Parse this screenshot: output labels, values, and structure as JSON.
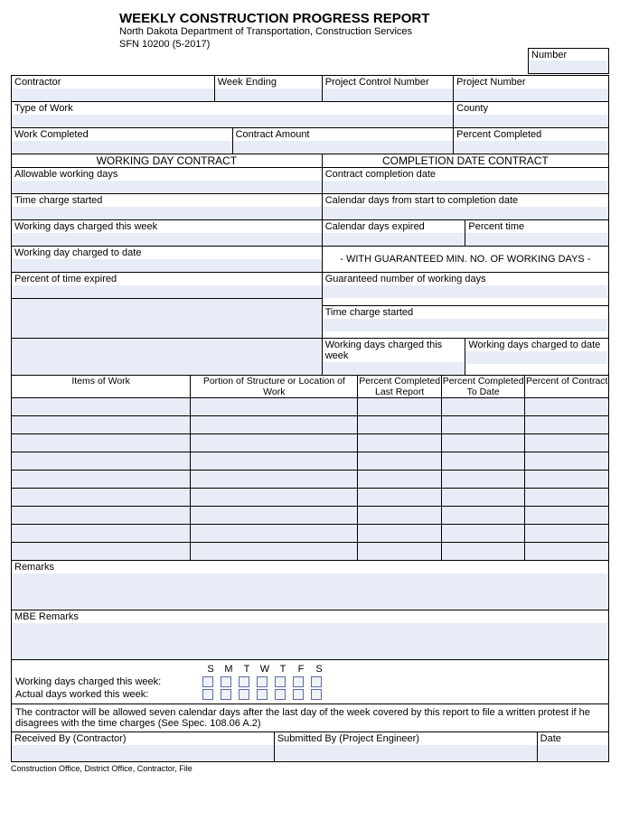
{
  "header": {
    "title": "WEEKLY CONSTRUCTION PROGRESS REPORT",
    "subtitle": "North Dakota Department of Transportation, Construction Services",
    "form_no": "SFN 10200 (5-2017)",
    "number_label": "Number"
  },
  "row1": {
    "contractor": "Contractor",
    "week_ending": "Week Ending",
    "pcn": "Project Control Number",
    "project_number": "Project Number"
  },
  "row2": {
    "type_of_work": "Type of Work",
    "county": "County"
  },
  "row3": {
    "work_completed": "Work Completed",
    "contract_amount": "Contract Amount",
    "percent_completed": "Percent Completed"
  },
  "sections": {
    "working_day": "WORKING DAY CONTRACT",
    "completion_date": "COMPLETION DATE CONTRACT"
  },
  "left": {
    "allowable": "Allowable working days",
    "time_charge_started": "Time charge started",
    "charged_this_week": "Working days charged this week",
    "charged_to_date": "Working day charged to date",
    "percent_time_expired": "Percent of time expired"
  },
  "right": {
    "contract_completion_date": "Contract completion date",
    "calendar_days_start_to_completion": "Calendar days from start to completion date",
    "calendar_days_expired": "Calendar days expired",
    "percent_time": "Percent time",
    "guaranteed_banner": "- WITH GUARANTEED MIN. NO. OF WORKING DAYS -",
    "guaranteed_number": "Guaranteed number of working days",
    "time_charge_started": "Time charge started",
    "charged_this_week": "Working days charged this week",
    "charged_to_date": "Working days charged to date"
  },
  "work_table": {
    "headers": {
      "items": "Items of Work",
      "portion": "Portion of Structure or Location of Work",
      "pc_last": "Percent Completed Last Report",
      "pc_todate": "Percent Completed To Date",
      "pc_contract": "Percent of Contract"
    },
    "row_count": 9
  },
  "remarks": {
    "label": "Remarks",
    "mbe_label": "MBE Remarks"
  },
  "days": {
    "letters": [
      "S",
      "M",
      "T",
      "W",
      "T",
      "F",
      "S"
    ],
    "charged_label": "Working days charged this week:",
    "actual_label": "Actual days worked this week:"
  },
  "protest_text": "The contractor will be allowed seven calendar days after the last day of the week covered by this report to file a written protest if he disagrees with the time charges (See Spec. 108.06 A.2)",
  "sign": {
    "received": "Received By (Contractor)",
    "submitted": "Submitted By (Project Engineer)",
    "date": "Date"
  },
  "footer": "Construction Office, District Office, Contractor, File",
  "style": {
    "fill_color": "#e8ecf7",
    "border_color": "#000000",
    "font_family": "Arial",
    "title_fontsize": 15,
    "body_fontsize": 11
  }
}
